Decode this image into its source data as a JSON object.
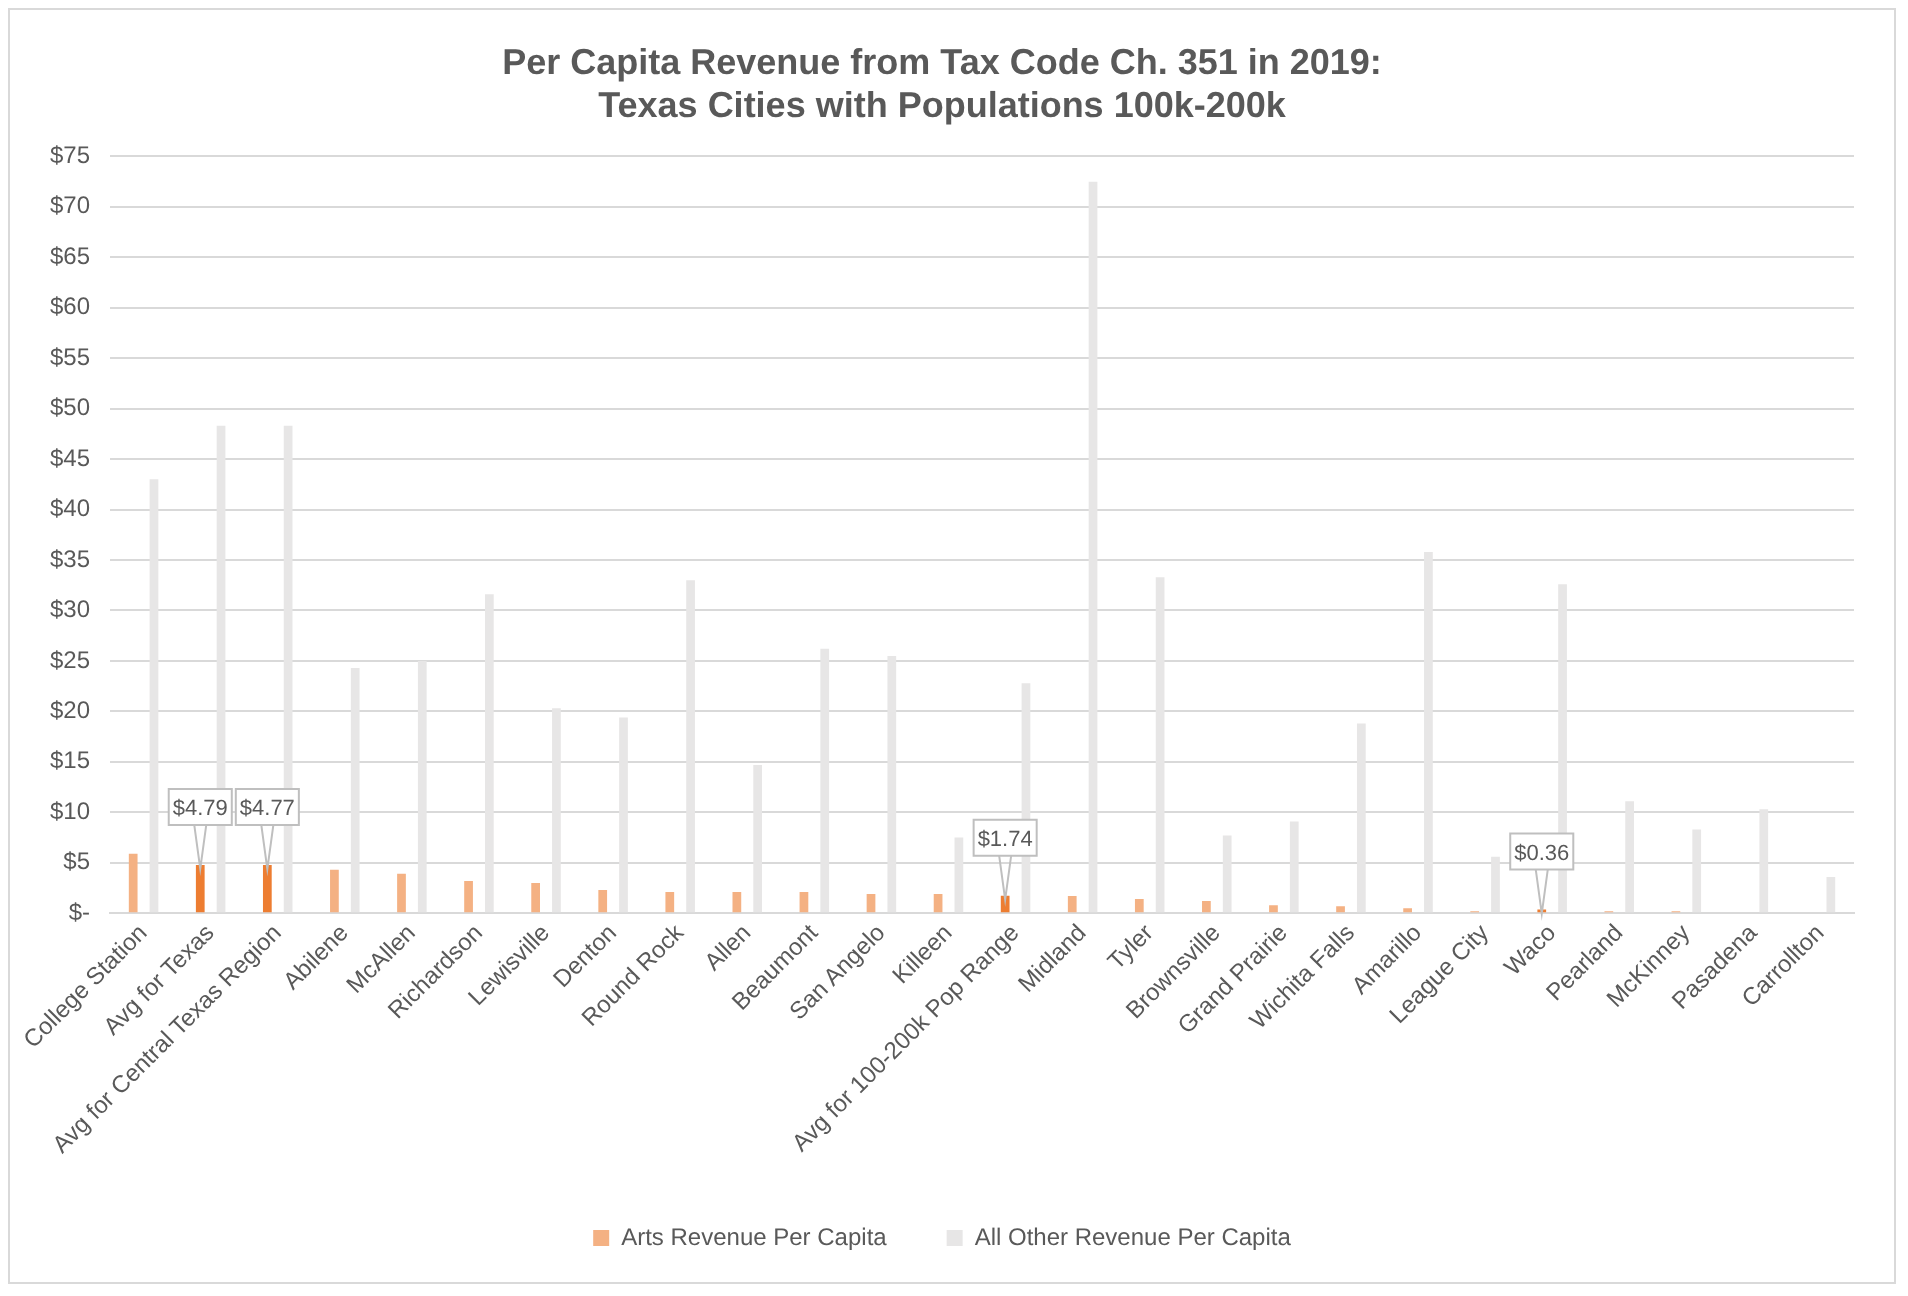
{
  "chart_data": {
    "type": "bar",
    "title": "Per Capita Revenue from Tax Code Ch. 351 in 2019:\nTexas Cities with Populations 100k-200k",
    "categories": [
      "College Station",
      "Avg for Texas",
      "Avg for Central Texas Region",
      "Abilene",
      "McAllen",
      "Richardson",
      "Lewisville",
      "Denton",
      "Round Rock",
      "Allen",
      "Beaumont",
      "San Angelo",
      "Killeen",
      "Avg for 100-200k Pop Range",
      "Midland",
      "Tyler",
      "Brownsville",
      "Grand Prairie",
      "Wichita Falls",
      "Amarillo",
      "League City",
      "Waco",
      "Pearland",
      "McKinney",
      "Pasadena",
      "Carrollton"
    ],
    "series": [
      {
        "name": "Arts Revenue Per Capita",
        "color": "#f4b183",
        "colors": [
          "#f4b183",
          "#ed7d31",
          "#ed7d31",
          "#f4b183",
          "#f4b183",
          "#f4b183",
          "#f4b183",
          "#f4b183",
          "#f4b183",
          "#f4b183",
          "#f4b183",
          "#f4b183",
          "#f4b183",
          "#ed7d31",
          "#f4b183",
          "#f4b183",
          "#f4b183",
          "#f4b183",
          "#f4b183",
          "#f4b183",
          "#f4b183",
          "#ed7d31",
          "#f4b183",
          "#f4b183",
          "#f4b183",
          "#f4b183"
        ],
        "values": [
          5.9,
          4.79,
          4.77,
          4.3,
          3.9,
          3.2,
          3.0,
          2.3,
          2.1,
          2.1,
          2.1,
          1.9,
          1.9,
          1.74,
          1.7,
          1.4,
          1.2,
          0.8,
          0.7,
          0.5,
          0.2,
          0.36,
          0.2,
          0.2,
          0,
          0
        ],
        "value_labels": [
          null,
          "$4.79",
          "$4.77",
          null,
          null,
          null,
          null,
          null,
          null,
          null,
          null,
          null,
          null,
          "$1.74",
          null,
          null,
          null,
          null,
          null,
          null,
          null,
          "$0.36",
          null,
          null,
          null,
          null
        ]
      },
      {
        "name": "All Other Revenue Per Capita",
        "color": "#e7e6e6",
        "values": [
          43,
          48.3,
          48.3,
          24.3,
          25,
          31.6,
          20.3,
          19.4,
          33,
          14.7,
          26.2,
          25.5,
          7.5,
          22.8,
          72.5,
          33.3,
          7.7,
          9.1,
          18.8,
          35.8,
          5.6,
          32.6,
          11.1,
          8.3,
          10.3,
          3.6
        ]
      }
    ],
    "ylim": [
      0,
      75
    ],
    "yticks": [
      {
        "value": 0,
        "label": "$-"
      },
      {
        "value": 5,
        "label": "$5"
      },
      {
        "value": 10,
        "label": "$10"
      },
      {
        "value": 15,
        "label": "$15"
      },
      {
        "value": 20,
        "label": "$20"
      },
      {
        "value": 25,
        "label": "$25"
      },
      {
        "value": 30,
        "label": "$30"
      },
      {
        "value": 35,
        "label": "$35"
      },
      {
        "value": 40,
        "label": "$40"
      },
      {
        "value": 45,
        "label": "$45"
      },
      {
        "value": 50,
        "label": "$50"
      },
      {
        "value": 55,
        "label": "$55"
      },
      {
        "value": 60,
        "label": "$60"
      },
      {
        "value": 65,
        "label": "$65"
      },
      {
        "value": 70,
        "label": "$70"
      },
      {
        "value": 75,
        "label": "$75"
      }
    ],
    "grid": "y",
    "legend": "bottom"
  }
}
